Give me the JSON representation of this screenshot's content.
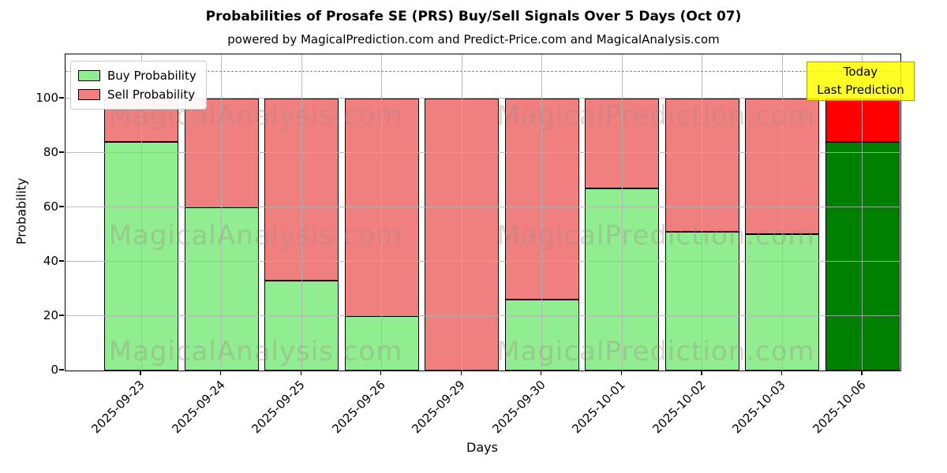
{
  "chart_data": {
    "type": "bar",
    "stacked": true,
    "title": "Probabilities of Prosafe SE (PRS) Buy/Sell Signals Over 5 Days (Oct 07)",
    "subtitle": "powered by MagicalPrediction.com and Predict-Price.com and MagicalAnalysis.com",
    "xlabel": "Days",
    "ylabel": "Probability",
    "categories": [
      "2025-09-23",
      "2025-09-24",
      "2025-09-25",
      "2025-09-26",
      "2025-09-29",
      "2025-09-30",
      "2025-10-01",
      "2025-10-02",
      "2025-10-03",
      "2025-10-06"
    ],
    "series": [
      {
        "name": "Buy Probability",
        "color": "#90EE90",
        "values": [
          84,
          60,
          33,
          20,
          0,
          26,
          67,
          51,
          50,
          84
        ]
      },
      {
        "name": "Sell Probability",
        "color": "#F08080",
        "values": [
          16,
          40,
          67,
          80,
          100,
          74,
          33,
          49,
          50,
          16
        ]
      }
    ],
    "today_bar": {
      "index": 9,
      "buy_color": "#008000",
      "sell_color": "#FF0000"
    },
    "yticks": [
      0,
      20,
      40,
      60,
      80,
      100
    ],
    "ylim": [
      0,
      116
    ],
    "grid": true,
    "legend_position": "upper left",
    "dashed_guide_y": 110
  },
  "annotation": {
    "line1": "Today",
    "line2": "Last Prediction",
    "bg_color": "#FFFF00"
  },
  "watermarks": {
    "left_text": "MagicalAnalysis.com",
    "right_text": "MagicalPrediction.com"
  }
}
